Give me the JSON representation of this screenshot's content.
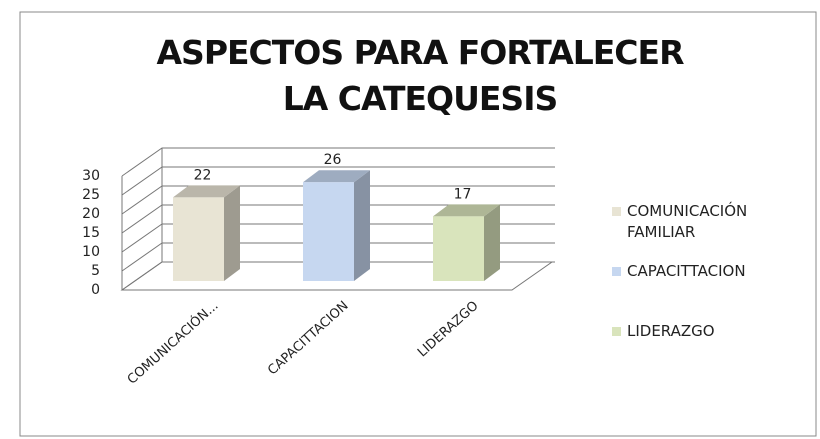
{
  "chart_data": {
    "type": "bar3d",
    "title": "ASPECTOS PARA FORTALECER LA CATEQUESIS",
    "categories": [
      "COMUNICACIÓN...",
      "CAPACITTACION",
      "LIDERAZGO"
    ],
    "legend": [
      "COMUNICACIÓN FAMILIAR",
      "CAPACITTACION",
      "LIDERAZGO"
    ],
    "values": [
      22,
      26,
      17
    ],
    "colors": [
      "#e8e4d4",
      "#c6d7f0",
      "#d9e4bc"
    ],
    "ylim": [
      0,
      30
    ],
    "yticks": [
      0,
      5,
      10,
      15,
      20,
      25,
      30
    ],
    "grid": true
  }
}
